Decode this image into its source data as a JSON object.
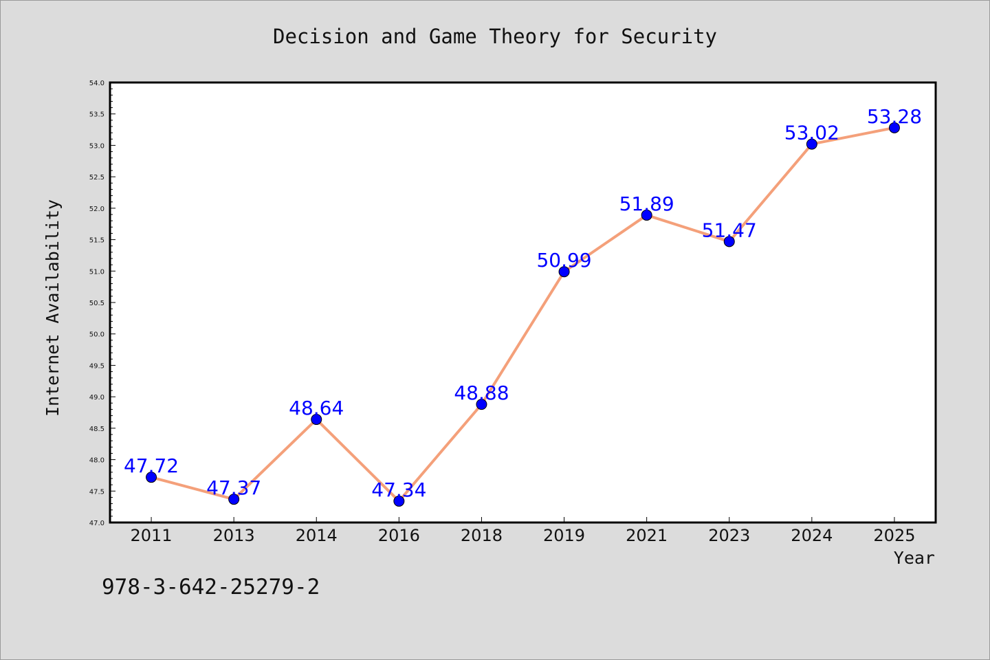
{
  "chart_data": {
    "type": "line",
    "title": "Decision and Game Theory for Security",
    "xlabel": "Year",
    "ylabel": "Internet Availability",
    "categories": [
      "2011",
      "2013",
      "2014",
      "2016",
      "2018",
      "2019",
      "2021",
      "2023",
      "2024",
      "2025"
    ],
    "series": [
      {
        "values": [
          47.72,
          47.37,
          48.64,
          47.34,
          48.88,
          50.99,
          51.89,
          51.47,
          53.02,
          53.28
        ],
        "labels": [
          "47.72",
          "47.37",
          "48.64",
          "47.34",
          "48.88",
          "50.99",
          "51.89",
          "51.47",
          "53.02",
          "53.28"
        ],
        "line_color": "#f4a07a",
        "marker_color": "#0000ff"
      }
    ],
    "ylim": [
      47.0,
      54.0
    ],
    "yticks": [
      "47.0",
      "47.5",
      "48.0",
      "48.5",
      "49.0",
      "49.5",
      "50.0",
      "50.5",
      "51.0",
      "51.5",
      "52.0",
      "52.5",
      "53.0",
      "53.5",
      "54.0"
    ],
    "grid": false,
    "legend": "none"
  },
  "footer": "978-3-642-25279-2"
}
